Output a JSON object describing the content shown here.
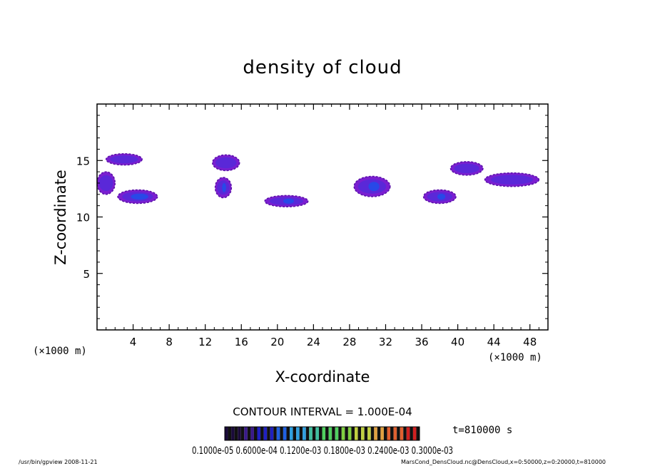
{
  "chart_data": {
    "type": "heatmap",
    "title": "density of cloud",
    "xlabel": "X-coordinate",
    "ylabel": "Z-coordinate",
    "x_unit_left": "(×1000 m)",
    "x_unit_right": "(×1000 m)",
    "xlim": [
      0,
      50
    ],
    "ylim": [
      0,
      20
    ],
    "x_ticks": [
      4,
      8,
      12,
      16,
      20,
      24,
      28,
      32,
      36,
      40,
      44,
      48
    ],
    "y_ticks": [
      5,
      10,
      15
    ],
    "contour_interval_label": "CONTOUR INTERVAL = 1.000E-04",
    "time_label": "t=810000 s",
    "colorbar_labels": "0.1000e-05   0.6000e-04   0.1200e-03   0.1800e-03   0.2400e-03   0.3000e-03",
    "colorbar_colors": [
      "#1a0a3a",
      "#3a1a8a",
      "#2020c0",
      "#2060e0",
      "#30a0e0",
      "#40c0a0",
      "#50d060",
      "#80d040",
      "#c0d040",
      "#e0a040",
      "#e06030",
      "#d02020"
    ],
    "cloud_regions": [
      {
        "x": 4.5,
        "z": 11.8,
        "rx": 2.2,
        "rz": 0.6,
        "level": 0.8
      },
      {
        "x": 3.0,
        "z": 15.1,
        "rx": 2.0,
        "rz": 0.5,
        "level": 0.2
      },
      {
        "x": 1.0,
        "z": 13.0,
        "rx": 1.0,
        "rz": 1.0,
        "level": 0.25
      },
      {
        "x": 14.0,
        "z": 12.6,
        "rx": 0.9,
        "rz": 0.9,
        "level": 0.45
      },
      {
        "x": 14.3,
        "z": 14.8,
        "rx": 1.5,
        "rz": 0.7,
        "level": 0.25
      },
      {
        "x": 21.0,
        "z": 11.4,
        "rx": 2.4,
        "rz": 0.5,
        "level": 0.45
      },
      {
        "x": 30.5,
        "z": 12.7,
        "rx": 2.0,
        "rz": 0.9,
        "level": 0.55
      },
      {
        "x": 38.0,
        "z": 11.8,
        "rx": 1.8,
        "rz": 0.6,
        "level": 0.45
      },
      {
        "x": 41.0,
        "z": 14.3,
        "rx": 1.8,
        "rz": 0.6,
        "level": 0.3
      },
      {
        "x": 46.0,
        "z": 13.3,
        "rx": 3.0,
        "rz": 0.6,
        "level": 0.2
      }
    ]
  },
  "footer": {
    "left": "/usr/bin/gpview  2008-11-21",
    "right": "MarsCond_DensCloud.nc@DensCloud,x=0:50000,z=0:20000,t=810000"
  }
}
